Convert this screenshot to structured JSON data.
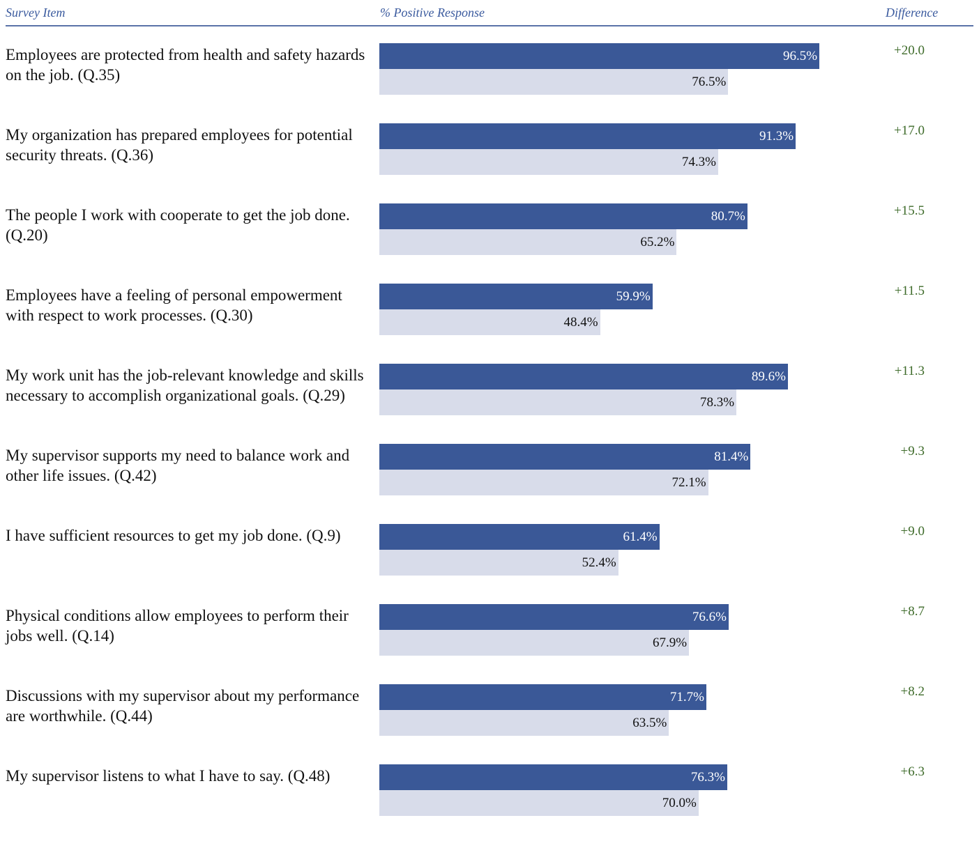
{
  "header": {
    "survey_item": "Survey Item",
    "pct_positive": "% Positive Response",
    "difference": "Difference"
  },
  "colors": {
    "primary_bar": "#3a5897",
    "secondary_bar": "#d8dcea",
    "difference_text": "#3e6b2a",
    "header_text": "#3a5a9e"
  },
  "chart_data": {
    "type": "bar",
    "orientation": "horizontal",
    "xlim": [
      0,
      100
    ],
    "categories": [
      "Employees are protected from health and safety hazards on the job. (Q.35)",
      "My organization has prepared employees for potential security threats. (Q.36)",
      "The people I work with cooperate to get the job done. (Q.20)",
      "Employees have a feeling of personal empowerment with respect to work processes. (Q.30)",
      "My work unit has the job-relevant knowledge and skills necessary to accomplish organizational goals. (Q.29)",
      "My supervisor supports my need to balance work and other life issues. (Q.42)",
      "I have sufficient resources to get my job done. (Q.9)",
      "Physical conditions allow employees to perform their jobs well. (Q.14)",
      "Discussions with my supervisor about my performance are worthwhile. (Q.44)",
      "My supervisor listens to what I have to say. (Q.48)"
    ],
    "series": [
      {
        "values": [
          96.5,
          91.3,
          80.7,
          59.9,
          89.6,
          81.4,
          61.4,
          76.6,
          71.7,
          76.3
        ],
        "labels": [
          "96.5%",
          "91.3%",
          "80.7%",
          "59.9%",
          "89.6%",
          "81.4%",
          "61.4%",
          "76.6%",
          "71.7%",
          "76.3%"
        ]
      },
      {
        "values": [
          76.5,
          74.3,
          65.2,
          48.4,
          78.3,
          72.1,
          52.4,
          67.9,
          63.5,
          70.0
        ],
        "labels": [
          "76.5%",
          "74.3%",
          "65.2%",
          "48.4%",
          "78.3%",
          "72.1%",
          "52.4%",
          "67.9%",
          "63.5%",
          "70.0%"
        ]
      }
    ],
    "difference": [
      "+20.0",
      "+17.0",
      "+15.5",
      "+11.5",
      "+11.3",
      "+9.3",
      "+9.0",
      "+8.7",
      "+8.2",
      "+6.3"
    ]
  }
}
